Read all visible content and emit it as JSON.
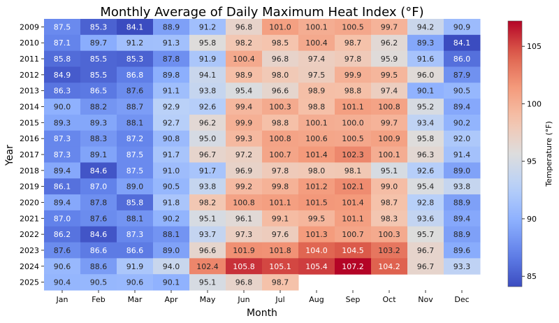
{
  "chart_data": {
    "type": "heatmap",
    "title": "Monthly Average of Daily Maximum Heat Index (°F)",
    "xlabel": "Month",
    "ylabel": "Year",
    "colorbar_label": "Temperature (°F)",
    "colormap": "coolwarm",
    "vmin": 84.1,
    "vmax": 107.2,
    "colorbar_ticks": [
      85,
      90,
      95,
      100,
      105
    ],
    "x_categories": [
      "Jan",
      "Feb",
      "Mar",
      "Apr",
      "May",
      "Jun",
      "Jul",
      "Aug",
      "Sep",
      "Oct",
      "Nov",
      "Dec"
    ],
    "y_categories": [
      "2009",
      "2010",
      "2011",
      "2012",
      "2013",
      "2014",
      "2015",
      "2016",
      "2017",
      "2018",
      "2019",
      "2020",
      "2021",
      "2022",
      "2023",
      "2024",
      "2025"
    ],
    "values": [
      [
        87.5,
        85.3,
        84.1,
        88.9,
        91.2,
        96.8,
        101.0,
        100.1,
        100.5,
        99.7,
        94.2,
        90.9
      ],
      [
        87.1,
        89.7,
        91.2,
        91.3,
        95.8,
        98.2,
        98.5,
        100.4,
        98.7,
        96.2,
        89.3,
        84.1
      ],
      [
        85.8,
        85.5,
        85.3,
        87.8,
        91.9,
        100.4,
        96.8,
        97.4,
        97.8,
        95.9,
        91.6,
        86.0
      ],
      [
        84.9,
        85.5,
        86.8,
        89.8,
        94.1,
        98.9,
        98.0,
        97.5,
        99.9,
        99.5,
        96.0,
        87.9
      ],
      [
        86.3,
        86.5,
        87.6,
        91.1,
        93.8,
        95.4,
        96.6,
        98.9,
        98.8,
        97.4,
        90.1,
        90.5
      ],
      [
        90.0,
        88.2,
        88.7,
        92.9,
        92.6,
        99.4,
        100.3,
        98.8,
        101.1,
        100.8,
        95.2,
        89.4
      ],
      [
        89.3,
        89.3,
        88.1,
        92.7,
        96.2,
        99.9,
        98.8,
        100.1,
        100.0,
        99.7,
        93.4,
        90.2
      ],
      [
        87.3,
        88.3,
        87.2,
        90.8,
        95.0,
        99.3,
        100.8,
        100.6,
        100.5,
        100.9,
        95.8,
        92.0
      ],
      [
        87.3,
        89.1,
        87.5,
        91.7,
        96.7,
        97.2,
        100.7,
        101.4,
        102.3,
        100.1,
        96.3,
        91.4
      ],
      [
        89.4,
        84.6,
        87.5,
        91.0,
        91.7,
        96.9,
        97.8,
        98.0,
        98.1,
        95.1,
        92.6,
        89.0
      ],
      [
        86.1,
        87.0,
        89.0,
        90.5,
        93.8,
        99.2,
        99.8,
        101.2,
        102.1,
        99.0,
        95.4,
        93.8
      ],
      [
        89.4,
        87.8,
        85.8,
        91.8,
        98.2,
        100.8,
        101.1,
        101.5,
        101.4,
        98.7,
        92.8,
        88.9
      ],
      [
        87.0,
        87.6,
        88.1,
        90.2,
        95.1,
        96.1,
        99.1,
        99.5,
        101.1,
        98.3,
        93.6,
        89.4
      ],
      [
        86.2,
        84.6,
        87.3,
        88.1,
        93.7,
        97.3,
        97.6,
        101.3,
        100.7,
        100.3,
        95.7,
        88.9
      ],
      [
        87.6,
        86.6,
        86.6,
        89.0,
        96.6,
        101.9,
        101.8,
        104.0,
        104.5,
        103.2,
        96.7,
        89.6
      ],
      [
        90.6,
        88.6,
        91.9,
        94.0,
        102.4,
        105.8,
        105.1,
        105.4,
        107.2,
        104.2,
        96.7,
        93.3
      ],
      [
        90.4,
        90.5,
        90.6,
        90.1,
        95.1,
        96.8,
        98.7,
        null,
        null,
        null,
        null,
        null
      ]
    ]
  }
}
